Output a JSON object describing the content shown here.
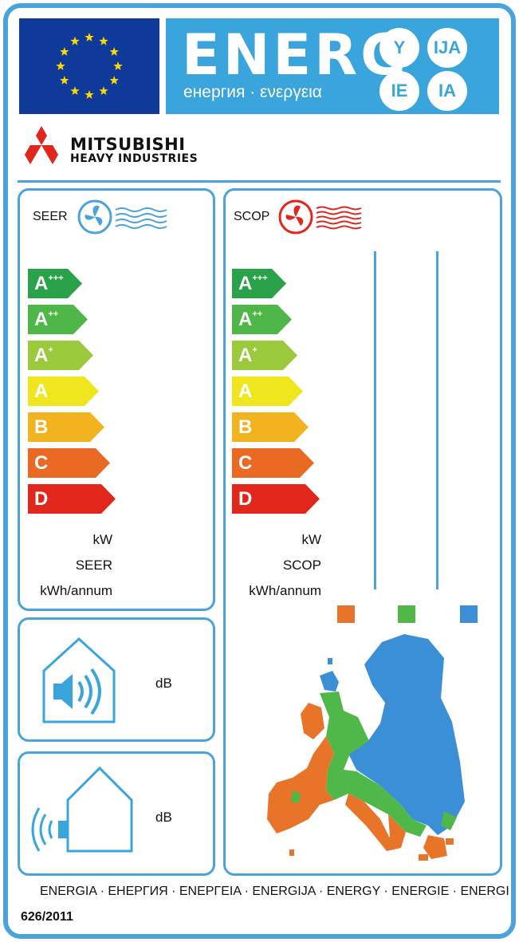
{
  "header": {
    "energ_word": "ENERG",
    "energ_subtitle": "енергия · ενεργεια",
    "suffixes": [
      "Y",
      "IJA",
      "IE",
      "IA"
    ]
  },
  "brand": {
    "line1": "MITSUBISHI",
    "line2": "HEAVY INDUSTRIES"
  },
  "cooling": {
    "title": "SEER",
    "classes": [
      "A+++",
      "A++",
      "A+",
      "A",
      "B",
      "C",
      "D"
    ],
    "units": [
      "kW",
      "SEER",
      "kWh/annum"
    ]
  },
  "heating": {
    "title": "SCOP",
    "classes": [
      "A+++",
      "A++",
      "A+",
      "A",
      "B",
      "C",
      "D"
    ],
    "units": [
      "kW",
      "SCOP",
      "kWh/annum"
    ]
  },
  "noise_indoor": {
    "unit": "dB"
  },
  "noise_outdoor": {
    "unit": "dB"
  },
  "climate_legend_colors": [
    "#e8742a",
    "#4fb848",
    "#3a8fd6"
  ],
  "class_colors": [
    "#2aa24a",
    "#4db848",
    "#9ac93c",
    "#f0e61e",
    "#f2b31e",
    "#ea6a24",
    "#e1261c"
  ],
  "icons": [
    "eu-flag-icon",
    "fan-cool-icon",
    "fan-heat-icon",
    "indoor-noise-icon",
    "outdoor-noise-icon",
    "europe-map-icon"
  ],
  "footer": {
    "languages": "ENERGIA · ЕНЕРГИЯ · ΕΝΕΡΓΕΙΑ · ENERGIJA · ENERGY · ENERGIE · ENERGI",
    "regulation": "626/2011"
  }
}
